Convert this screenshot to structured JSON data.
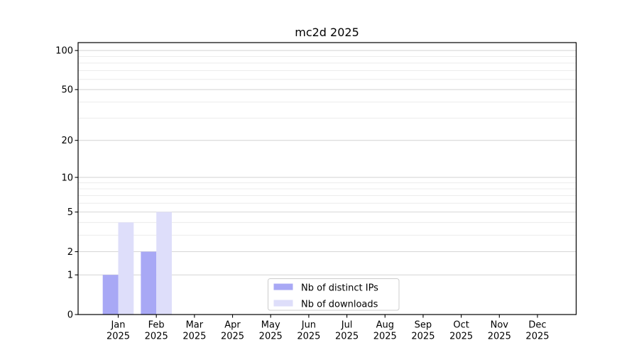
{
  "figure": {
    "background": "#ffffff"
  },
  "chart_data": {
    "type": "bar",
    "title": "mc2d 2025",
    "categories": [
      [
        "Jan",
        "2025"
      ],
      [
        "Feb",
        "2025"
      ],
      [
        "Mar",
        "2025"
      ],
      [
        "Apr",
        "2025"
      ],
      [
        "May",
        "2025"
      ],
      [
        "Jun",
        "2025"
      ],
      [
        "Jul",
        "2025"
      ],
      [
        "Aug",
        "2025"
      ],
      [
        "Sep",
        "2025"
      ],
      [
        "Oct",
        "2025"
      ],
      [
        "Nov",
        "2025"
      ],
      [
        "Dec",
        "2025"
      ]
    ],
    "series": [
      {
        "name": "Nb of distinct IPs",
        "color": "#a8a8f5",
        "values": [
          1,
          2,
          0,
          0,
          0,
          0,
          0,
          0,
          0,
          0,
          0,
          0
        ]
      },
      {
        "name": "Nb of downloads",
        "color": "#dedefa",
        "values": [
          4,
          5,
          0,
          0,
          0,
          0,
          0,
          0,
          0,
          0,
          0,
          0
        ]
      }
    ],
    "y_axis": {
      "scale": "log10(1+y)",
      "tick_values": [
        0,
        1,
        2,
        5,
        10,
        20,
        50,
        100
      ],
      "minor_tick_values": [
        3,
        4,
        6,
        7,
        8,
        9,
        30,
        40,
        60,
        70,
        80,
        90
      ],
      "range": [
        0,
        115
      ]
    },
    "xlabel": "",
    "ylabel": "",
    "legend": {
      "position": "bottom-center"
    },
    "grid": {
      "major": true,
      "minor": true
    },
    "colors": {
      "major_grid": "#d8d8d8",
      "minor_grid": "#ececec",
      "axis": "#000000",
      "text": "#000000",
      "legend_border": "#cccccc",
      "legend_background": "#ffffff"
    }
  }
}
